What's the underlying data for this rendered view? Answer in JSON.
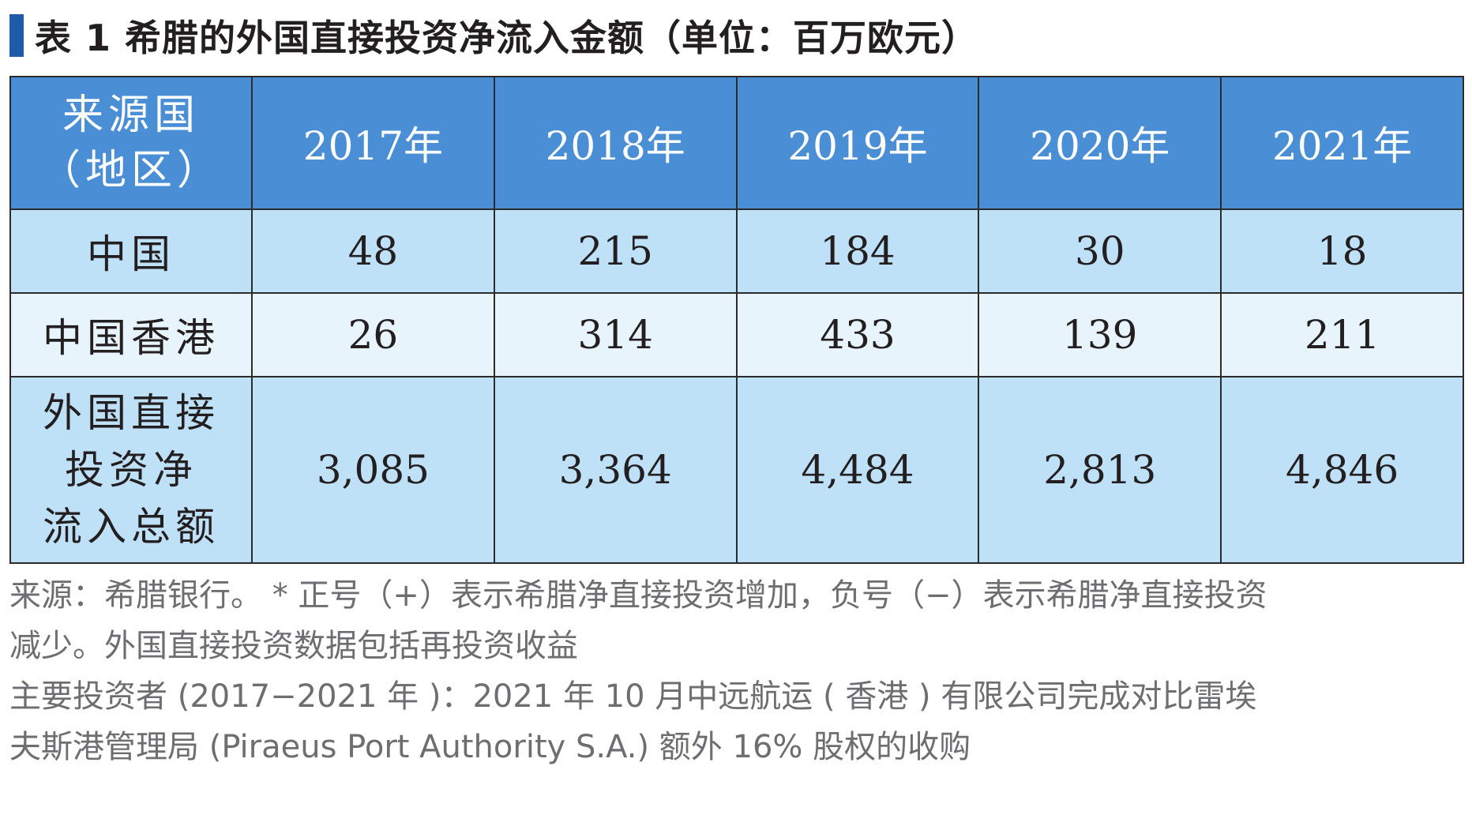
{
  "title": "表 1  希腊的外国直接投资净流入金额（单位：百万欧元）",
  "table": {
    "header_source_line1": "来源国",
    "header_source_line2": "（地区）",
    "years": [
      "2017年",
      "2018年",
      "2019年",
      "2020年",
      "2021年"
    ],
    "rows": [
      {
        "label_lines": [
          "中国"
        ],
        "values": [
          "48",
          "215",
          "184",
          "30",
          "18"
        ]
      },
      {
        "label_lines": [
          "中国香港"
        ],
        "values": [
          "26",
          "314",
          "433",
          "139",
          "211"
        ]
      },
      {
        "label_lines": [
          "外国直接",
          "投资净",
          "流入总额"
        ],
        "values": [
          "3,085",
          "3,364",
          "4,484",
          "2,813",
          "4,846"
        ]
      }
    ]
  },
  "notes": {
    "line1": "来源：希腊银行。 * 正号（+）表示希腊净直接投资增加，负号（−）表示希腊净直接投资",
    "line2": "减少。外国直接投资数据包括再投资收益",
    "line3": "主要投资者 (2017−2021 年 )：2021 年 10 月中远航运 ( 香港 ) 有限公司完成对比雷埃",
    "line4": "夫斯港管理局 (Piraeus Port Authority S.A.) 额外 16% 股权的收购"
  },
  "colors": {
    "header_bg": "#4a8ed6",
    "row_light_blue": "#bfe1f7",
    "row_pale_blue": "#e8f4fc",
    "title_marker": "#1f5ba8",
    "note_text": "#6d6e71"
  },
  "chart_data": {
    "type": "table",
    "title": "表 1  希腊的外国直接投资净流入金额（单位：百万欧元）",
    "columns": [
      "来源国（地区）",
      "2017年",
      "2018年",
      "2019年",
      "2020年",
      "2021年"
    ],
    "categories": [
      "2017年",
      "2018年",
      "2019年",
      "2020年",
      "2021年"
    ],
    "series": [
      {
        "name": "中国",
        "values": [
          48,
          215,
          184,
          30,
          18
        ]
      },
      {
        "name": "中国香港",
        "values": [
          26,
          314,
          433,
          139,
          211
        ]
      },
      {
        "name": "外国直接投资净流入总额",
        "values": [
          3085,
          3364,
          4484,
          2813,
          4846
        ]
      }
    ]
  }
}
